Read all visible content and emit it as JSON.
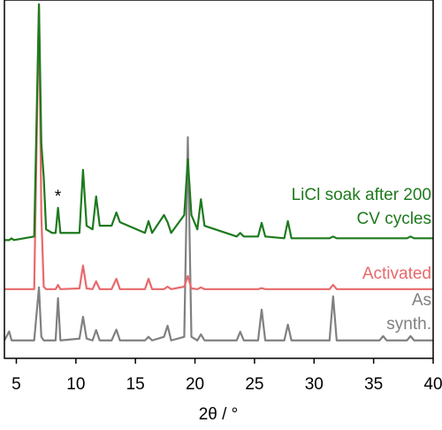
{
  "chart_data": {
    "type": "line",
    "xlabel": "2θ / °",
    "annotations": [
      "*"
    ],
    "x": [
      4,
      4.4,
      4.6,
      4.8,
      6.5,
      6.9,
      7.1,
      7.3,
      7.5,
      8.0,
      8.3,
      8.5,
      8.7,
      10.3,
      10.6,
      10.9,
      11.4,
      11.7,
      12.0,
      13.0,
      13.4,
      13.7,
      15.8,
      16.1,
      16.4,
      17.4,
      17.7,
      18.0,
      19.1,
      19.4,
      19.7,
      20.2,
      20.5,
      20.8,
      23.5,
      23.8,
      24.1,
      25.3,
      25.6,
      25.9,
      27.5,
      27.8,
      28.1,
      31.3,
      31.6,
      31.9,
      35.5,
      35.8,
      36.1,
      37.8,
      38.1,
      38.4,
      40
    ],
    "series": [
      {
        "name": "As synth.",
        "color": "#808080",
        "values": [
          5,
          7.5,
          5,
          5,
          5,
          19.8,
          6,
          5,
          5,
          5,
          5,
          16.8,
          5,
          5.5,
          11.6,
          5.5,
          5,
          7.9,
          5,
          5,
          8,
          5,
          5,
          6,
          5,
          6,
          9.1,
          5,
          6,
          61.7,
          6,
          5,
          6.7,
          5,
          5,
          7.4,
          5,
          5,
          13.6,
          5,
          5,
          9.4,
          5,
          5,
          17.3,
          5,
          5,
          6.2,
          5,
          5,
          6.2,
          5,
          5
        ]
      },
      {
        "name": "Activated",
        "color": "#e8696b",
        "values": [
          19.3,
          19.3,
          19.3,
          19.3,
          19.3,
          98.8,
          40,
          20,
          19.3,
          19.3,
          19.3,
          20.5,
          19.3,
          19.5,
          25.9,
          19.5,
          19.3,
          21.5,
          19.3,
          19.3,
          22.2,
          19.3,
          19.3,
          22.2,
          19.3,
          19.3,
          20,
          19.3,
          20,
          23,
          19.5,
          19.3,
          19.8,
          19.3,
          19.3,
          19.3,
          19.3,
          19.3,
          19.6,
          19.3,
          19.3,
          19.3,
          19.3,
          19.3,
          20.5,
          19.3,
          19.3,
          19.3,
          19.3,
          19.3,
          19.3,
          19.3,
          19.3
        ]
      },
      {
        "name": "LiCl soak after 200 CV cycles",
        "color": "#1e7a1e",
        "values": [
          33,
          33,
          33.5,
          33,
          34,
          98.8,
          60,
          50.6,
          36,
          35,
          35,
          42,
          35,
          35,
          52.6,
          37,
          36,
          45.2,
          37,
          37,
          40.7,
          38,
          35,
          38.3,
          35,
          40,
          38,
          35,
          40,
          55.6,
          40,
          36,
          44.4,
          37,
          34,
          35,
          34,
          34,
          37.8,
          34,
          33.5,
          38.3,
          33.5,
          33.5,
          34,
          33.5,
          33.5,
          33.5,
          33.5,
          33.5,
          34,
          33.5,
          33.5
        ]
      }
    ],
    "xlim": [
      4,
      40
    ],
    "xticks": [
      5,
      10,
      15,
      20,
      25,
      30,
      35,
      40
    ],
    "ylim": [
      0,
      100
    ]
  }
}
